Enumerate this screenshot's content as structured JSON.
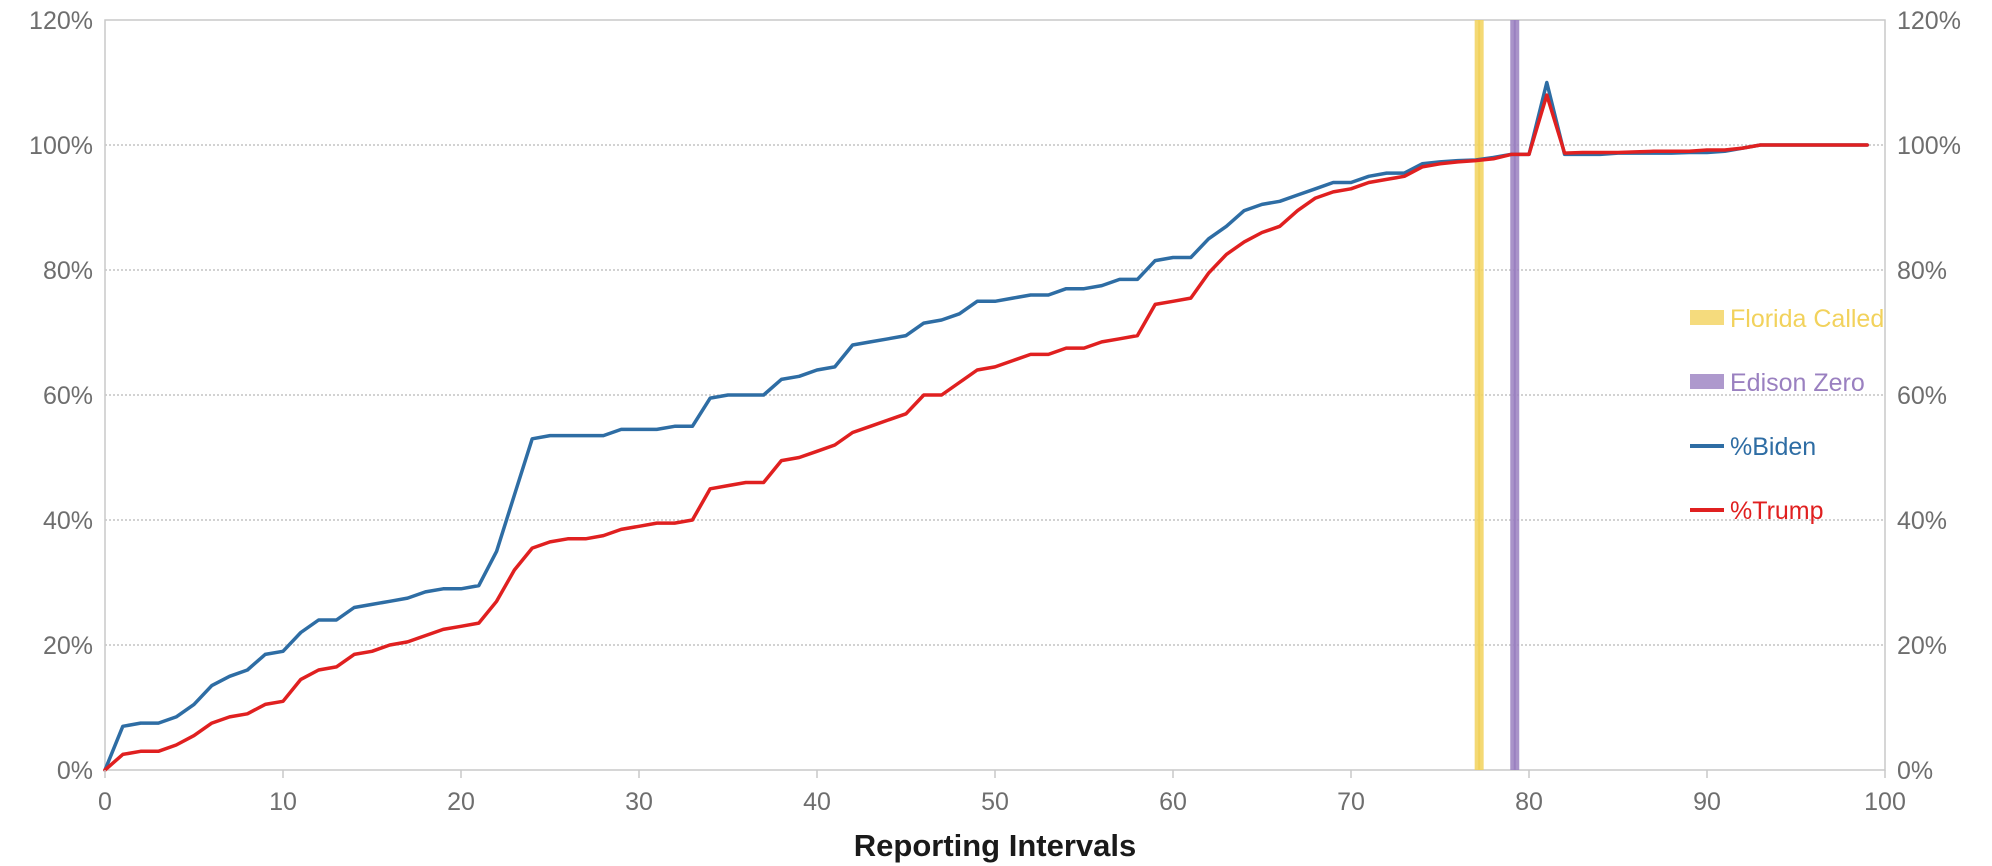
{
  "chart_data": {
    "type": "line",
    "title": "",
    "xlabel": "Reporting Intervals",
    "ylabel": "",
    "xlim": [
      0,
      100
    ],
    "ylim": [
      0,
      120
    ],
    "x_ticks": [
      "0",
      "10",
      "20",
      "30",
      "40",
      "50",
      "60",
      "70",
      "80",
      "90",
      "100"
    ],
    "y_ticks": [
      "0%",
      "20%",
      "40%",
      "60%",
      "80%",
      "100%",
      "120%"
    ],
    "grid": "horizontal",
    "legend": "right",
    "markers": [
      {
        "name": "Florida Called",
        "x": 77.2,
        "color": "#f2d25c"
      },
      {
        "name": "Edison Zero",
        "x": 79.2,
        "color": "#9a80c0"
      }
    ],
    "series": [
      {
        "name": "%Biden",
        "color": "#2e6da4",
        "values": [
          0,
          7,
          7.5,
          7.5,
          8.5,
          10.5,
          13.5,
          15,
          16,
          18.5,
          19,
          22,
          24,
          24,
          26,
          26.5,
          27,
          27.5,
          28.5,
          29,
          29,
          29.5,
          35,
          44,
          53,
          53.5,
          53.5,
          53.5,
          53.5,
          54.5,
          54.5,
          54.5,
          55,
          55,
          59.5,
          60,
          60,
          60,
          62.5,
          63,
          64,
          64.5,
          68,
          68.5,
          69,
          69.5,
          71.5,
          72,
          73,
          75,
          75,
          75.5,
          76,
          76,
          77,
          77,
          77.5,
          78.5,
          78.5,
          81.5,
          82,
          82,
          85,
          87,
          89.5,
          90.5,
          91,
          92,
          93,
          94,
          94,
          95,
          95.5,
          95.5,
          97,
          97.3,
          97.5,
          97.6,
          98,
          98.5,
          98.5,
          110,
          98.5,
          98.5,
          98.5,
          98.7,
          98.7,
          98.7,
          98.7,
          98.8,
          98.8,
          99,
          99.5,
          100,
          100,
          100,
          100,
          100,
          100,
          100
        ]
      },
      {
        "name": "%Trump",
        "color": "#e02020",
        "values": [
          0,
          2.5,
          3,
          3,
          4,
          5.5,
          7.5,
          8.5,
          9,
          10.5,
          11,
          14.5,
          16,
          16.5,
          18.5,
          19,
          20,
          20.5,
          21.5,
          22.5,
          23,
          23.5,
          27,
          32,
          35.5,
          36.5,
          37,
          37,
          37.5,
          38.5,
          39,
          39.5,
          39.5,
          40,
          45,
          45.5,
          46,
          46,
          49.5,
          50,
          51,
          52,
          54,
          55,
          56,
          57,
          60,
          60,
          62,
          64,
          64.5,
          65.5,
          66.5,
          66.5,
          67.5,
          67.5,
          68.5,
          69,
          69.5,
          74.5,
          75,
          75.5,
          79.5,
          82.5,
          84.5,
          86,
          87,
          89.5,
          91.5,
          92.5,
          93,
          94,
          94.5,
          95,
          96.5,
          97,
          97.3,
          97.5,
          97.8,
          98.5,
          98.5,
          108,
          98.7,
          98.8,
          98.8,
          98.8,
          98.9,
          99,
          99,
          99,
          99.2,
          99.2,
          99.5,
          100,
          100,
          100,
          100,
          100,
          100,
          100
        ]
      }
    ]
  }
}
